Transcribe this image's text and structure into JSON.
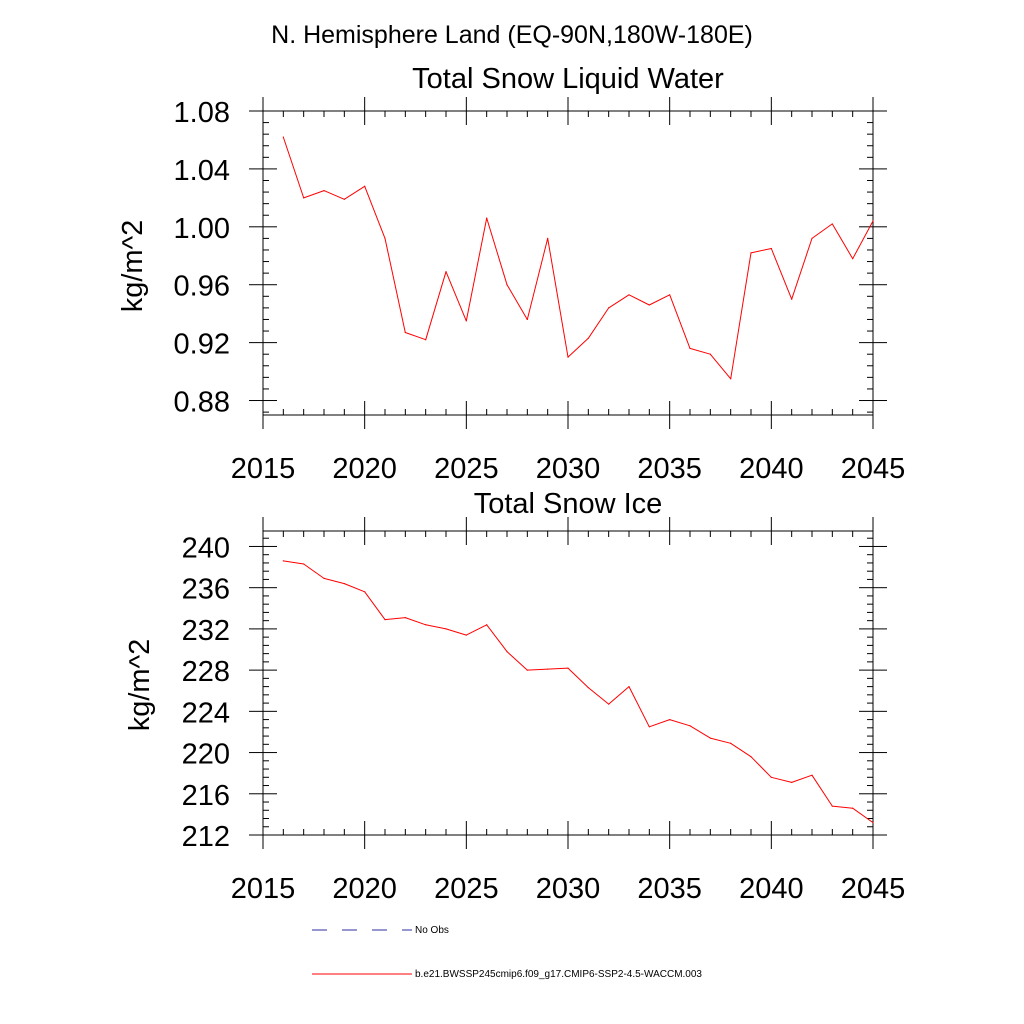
{
  "figure_title": "N. Hemisphere Land (EQ-90N,180W-180E)",
  "legend": {
    "items": [
      {
        "label": "No Obs",
        "color": "#2e2ea0",
        "style": "dashed"
      },
      {
        "label": "b.e21.BWSSP245cmip6.f09_g17.CMIP6-SSP2-4.5-WACCM.003",
        "color": "#ff0000",
        "style": "solid"
      }
    ]
  },
  "chart_data": [
    {
      "type": "line",
      "title": "Total Snow Liquid Water",
      "xlabel": "",
      "ylabel": "kg/m^2",
      "xlim": [
        2015,
        2045
      ],
      "ylim": [
        0.87,
        1.08
      ],
      "x_ticks": [
        2015,
        2020,
        2025,
        2030,
        2035,
        2040,
        2045
      ],
      "y_ticks": [
        0.88,
        0.92,
        0.96,
        1.0,
        1.04,
        1.08
      ],
      "y_tick_labels": [
        "0.88",
        "0.92",
        "0.96",
        "1.00",
        "1.04",
        "1.08"
      ],
      "x": [
        2016,
        2017,
        2018,
        2019,
        2020,
        2021,
        2022,
        2023,
        2024,
        2025,
        2026,
        2027,
        2028,
        2029,
        2030,
        2031,
        2032,
        2033,
        2034,
        2035,
        2036,
        2037,
        2038,
        2039,
        2040,
        2041,
        2042,
        2043,
        2044,
        2045
      ],
      "series": [
        {
          "name": "b.e21.BWSSP245cmip6.f09_g17.CMIP6-SSP2-4.5-WACCM.003",
          "color": "#ff0000",
          "values": [
            1.062,
            1.02,
            1.025,
            1.019,
            1.028,
            0.992,
            0.927,
            0.922,
            0.969,
            0.935,
            1.006,
            0.96,
            0.936,
            0.992,
            0.91,
            0.923,
            0.944,
            0.953,
            0.946,
            0.953,
            0.916,
            0.912,
            0.895,
            0.982,
            0.985,
            0.95,
            0.992,
            1.002,
            0.978,
            1.004
          ]
        }
      ],
      "grid": false
    },
    {
      "type": "line",
      "title": "Total Snow Ice",
      "xlabel": "",
      "ylabel": "kg/m^2",
      "xlim": [
        2015,
        2045
      ],
      "ylim": [
        212,
        241.5
      ],
      "x_ticks": [
        2015,
        2020,
        2025,
        2030,
        2035,
        2040,
        2045
      ],
      "y_ticks": [
        212,
        216,
        220,
        224,
        228,
        232,
        236,
        240
      ],
      "y_tick_labels": [
        "212",
        "216",
        "220",
        "224",
        "228",
        "232",
        "236",
        "240"
      ],
      "x": [
        2016,
        2017,
        2018,
        2019,
        2020,
        2021,
        2022,
        2023,
        2024,
        2025,
        2026,
        2027,
        2028,
        2029,
        2030,
        2031,
        2032,
        2033,
        2034,
        2035,
        2036,
        2037,
        2038,
        2039,
        2040,
        2041,
        2042,
        2043,
        2044,
        2045
      ],
      "series": [
        {
          "name": "b.e21.BWSSP245cmip6.f09_g17.CMIP6-SSP2-4.5-WACCM.003",
          "color": "#ff0000",
          "values": [
            238.6,
            238.3,
            236.9,
            236.4,
            235.6,
            232.9,
            233.1,
            232.4,
            232.0,
            231.4,
            232.4,
            229.8,
            228.0,
            228.1,
            228.2,
            226.3,
            224.7,
            226.4,
            222.5,
            223.2,
            222.6,
            221.4,
            220.9,
            219.6,
            217.6,
            217.1,
            217.8,
            214.8,
            214.6,
            213.2
          ]
        }
      ],
      "grid": false
    }
  ]
}
